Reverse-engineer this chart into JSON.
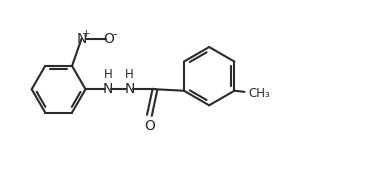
{
  "bg_color": "#ffffff",
  "line_color": "#2a2a2a",
  "line_width": 1.5,
  "text_color": "#2a2a2a",
  "font_size": 8.5,
  "figsize": [
    3.75,
    1.71
  ],
  "dpi": 100,
  "xlim": [
    0.0,
    10.0
  ],
  "ylim": [
    0.5,
    4.8
  ]
}
